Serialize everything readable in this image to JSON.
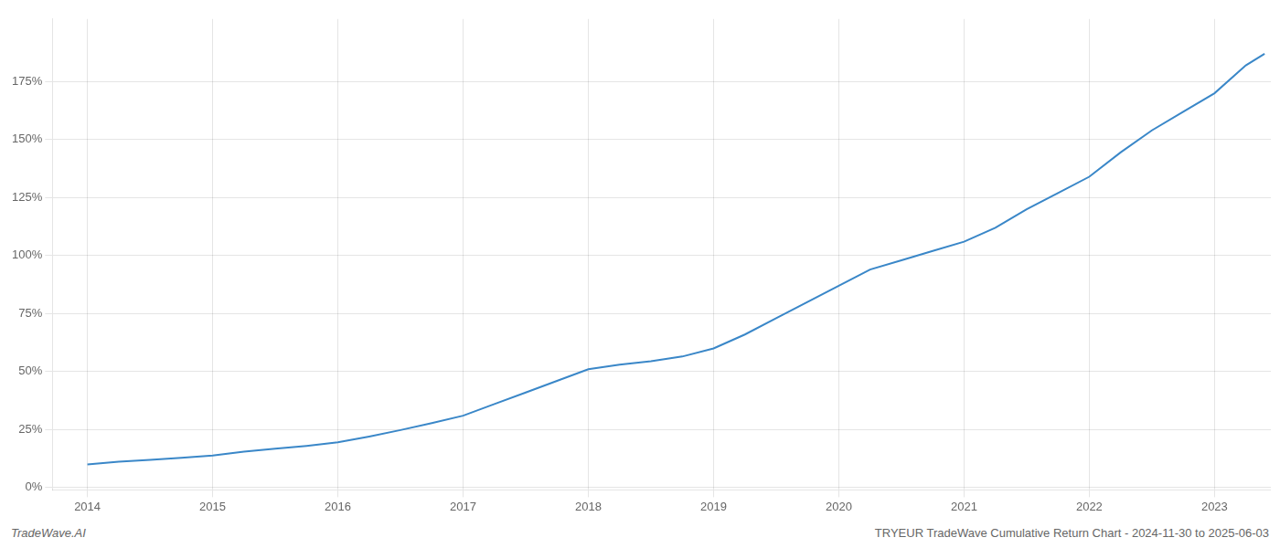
{
  "chart_data": {
    "type": "line",
    "annotations": [
      {
        "text": "TradeWave.AI"
      },
      {
        "text": "TRYEUR TradeWave Cumulative Return Chart - 2024-11-30 to 2025-06-03"
      }
    ],
    "x": [
      2014.0,
      2014.25,
      2014.5,
      2014.75,
      2015.0,
      2015.25,
      2015.5,
      2015.75,
      2016.0,
      2016.25,
      2016.5,
      2016.75,
      2017.0,
      2017.25,
      2017.5,
      2017.75,
      2018.0,
      2018.25,
      2018.5,
      2018.75,
      2019.0,
      2019.25,
      2019.5,
      2019.75,
      2020.0,
      2020.25,
      2020.5,
      2020.75,
      2021.0,
      2021.25,
      2021.5,
      2021.75,
      2022.0,
      2022.25,
      2022.5,
      2022.75,
      2023.0,
      2023.25,
      2023.4
    ],
    "values": [
      0.1,
      0.112,
      0.12,
      0.128,
      0.138,
      0.155,
      0.168,
      0.18,
      0.195,
      0.22,
      0.248,
      0.278,
      0.31,
      0.36,
      0.41,
      0.46,
      0.51,
      0.53,
      0.545,
      0.565,
      0.6,
      0.66,
      0.73,
      0.8,
      0.87,
      0.94,
      0.98,
      1.02,
      1.06,
      1.12,
      1.2,
      1.27,
      1.34,
      1.445,
      1.54,
      1.62,
      1.7,
      1.82,
      1.87
    ],
    "color": "#3a87c8",
    "xlim": [
      2013.72,
      2023.45
    ],
    "xticks": [
      2014,
      2015,
      2016,
      2017,
      2018,
      2019,
      2020,
      2021,
      2022,
      2023
    ],
    "ylim": [
      -0.01,
      2.02
    ],
    "yticks": [
      {
        "value": 0.0,
        "label": "0%"
      },
      {
        "value": 0.25,
        "label": "25%"
      },
      {
        "value": 0.5,
        "label": "50%"
      },
      {
        "value": 0.75,
        "label": "75%"
      },
      {
        "value": 1.0,
        "label": "100%"
      },
      {
        "value": 1.25,
        "label": "125%"
      },
      {
        "value": 1.5,
        "label": "150%"
      },
      {
        "value": 1.75,
        "label": "175%"
      }
    ],
    "grid": true
  }
}
